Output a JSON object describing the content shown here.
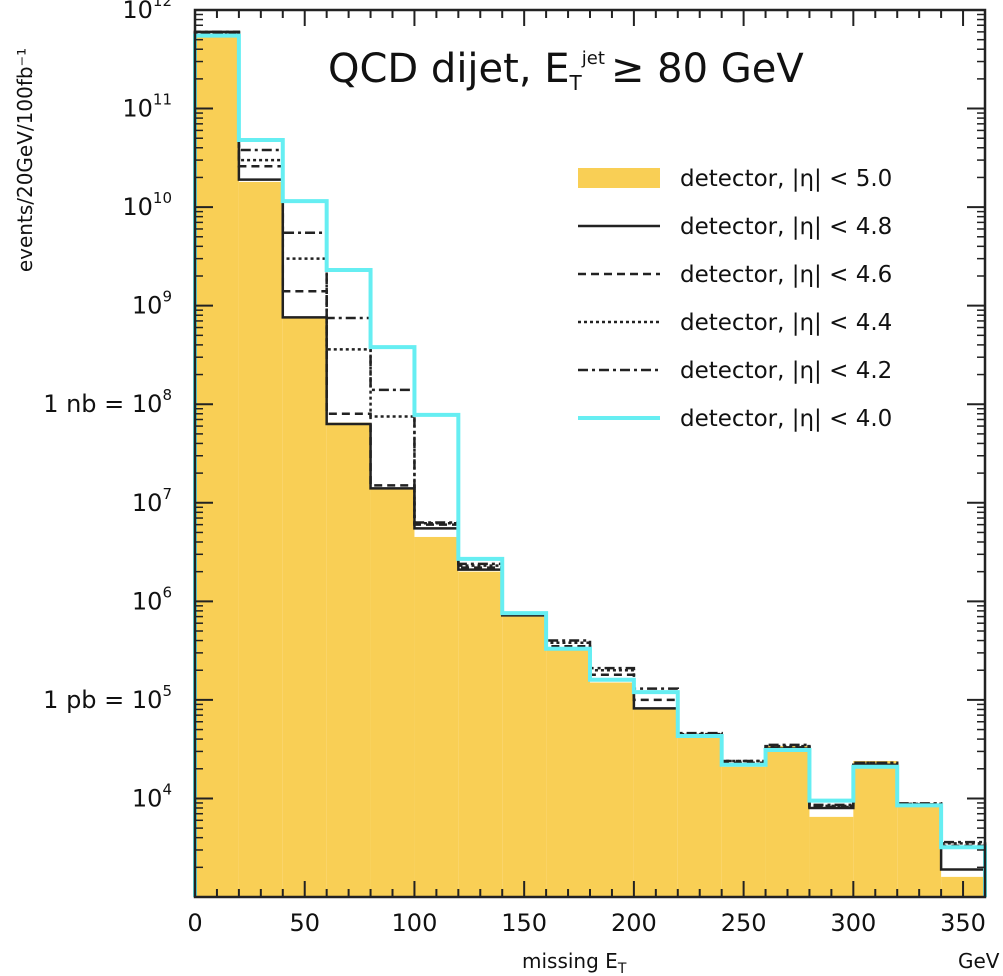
{
  "chart_data": {
    "type": "histogram",
    "title": "QCD dijet, E_T^jet ≥ 80 GeV",
    "title_parts": {
      "main": "QCD dijet, E",
      "sub": "T",
      "sup": "jet",
      "rest": "≥ 80 GeV"
    },
    "xlabel": "missing E",
    "xlabel_sub": "T",
    "xunit": "GeV",
    "ylabel": "events/20GeV/100fb⁻¹",
    "xlim": [
      0,
      360
    ],
    "ylim": [
      1000,
      1000000000000
    ],
    "log_y": true,
    "grid": false,
    "legend_position": "top-right",
    "x_ticks": [
      "0",
      "50",
      "100",
      "150",
      "200",
      "250",
      "300",
      "350"
    ],
    "x_tick_values": [
      0,
      50,
      100,
      150,
      200,
      250,
      300,
      350
    ],
    "y_ticks": [
      {
        "exp": 12,
        "prefix": ""
      },
      {
        "exp": 11,
        "prefix": ""
      },
      {
        "exp": 10,
        "prefix": ""
      },
      {
        "exp": 9,
        "prefix": ""
      },
      {
        "exp": 8,
        "prefix": "1 nb = "
      },
      {
        "exp": 7,
        "prefix": ""
      },
      {
        "exp": 6,
        "prefix": ""
      },
      {
        "exp": 5,
        "prefix": "1 pb = "
      },
      {
        "exp": 4,
        "prefix": ""
      }
    ],
    "bin_edges": [
      0,
      20,
      40,
      60,
      80,
      100,
      120,
      140,
      160,
      180,
      200,
      220,
      240,
      260,
      280,
      300,
      320,
      340,
      360
    ],
    "series": [
      {
        "name": "detector, |η| < 5.0",
        "style": "fill",
        "color": "#f9cf55",
        "values": [
          550000000000.0,
          18000000000.0,
          750000000.0,
          65000000.0,
          14000000.0,
          4500000.0,
          2000000.0,
          700000.0,
          320000.0,
          150000.0,
          80000.0,
          42000.0,
          21000.0,
          34000.0,
          6500.0,
          24000.0,
          8500.0,
          1600.0
        ]
      },
      {
        "name": "detector, |η| < 4.8",
        "style": "solid",
        "color": "#222222",
        "values": [
          600000000000.0,
          19000000000.0,
          760000000.0,
          63000000.0,
          14000000.0,
          5500000.0,
          2100000.0,
          720000.0,
          330000.0,
          160000.0,
          82000.0,
          43000.0,
          22000.0,
          32000.0,
          8000.0,
          22000.0,
          8600.0,
          1900.0
        ]
      },
      {
        "name": "detector, |η| < 4.6",
        "style": "dashed",
        "color": "#222222",
        "values": [
          580000000000.0,
          26000000000.0,
          1400000000.0,
          80000000.0,
          15000000.0,
          6000000.0,
          2200000.0,
          730000.0,
          350000.0,
          180000.0,
          100000.0,
          44000.0,
          23000.0,
          33000.0,
          8200.0,
          22000.0,
          8700.0,
          3300.0
        ]
      },
      {
        "name": "detector, |η| < 4.4",
        "style": "dotted",
        "color": "#222222",
        "values": [
          590000000000.0,
          30000000000.0,
          3000000000.0,
          360000000.0,
          75000000.0,
          6200000.0,
          2300000.0,
          740000.0,
          380000.0,
          200000.0,
          120000.0,
          45000.0,
          24000.0,
          34000.0,
          8400.0,
          23000.0,
          8800.0,
          3500.0
        ]
      },
      {
        "name": "detector, |η| < 4.2",
        "style": "dashdot",
        "color": "#222222",
        "values": [
          600000000000.0,
          38000000000.0,
          5500000000.0,
          750000000.0,
          140000000.0,
          6300000.0,
          2400000.0,
          750000.0,
          400000.0,
          210000.0,
          130000.0,
          46000.0,
          24000.0,
          35000.0,
          8600.0,
          23000.0,
          8900.0,
          3600.0
        ]
      },
      {
        "name": "detector, |η| < 4.0",
        "style": "cyan",
        "color": "#66eef2",
        "values": [
          550000000000.0,
          48000000000.0,
          11500000000.0,
          2300000000.0,
          380000000.0,
          78000000.0,
          2700000.0,
          760000.0,
          330000.0,
          160000.0,
          120000.0,
          43000.0,
          22000.0,
          31000.0,
          9500.0,
          21000.0,
          8500.0,
          3200.0
        ]
      }
    ]
  }
}
